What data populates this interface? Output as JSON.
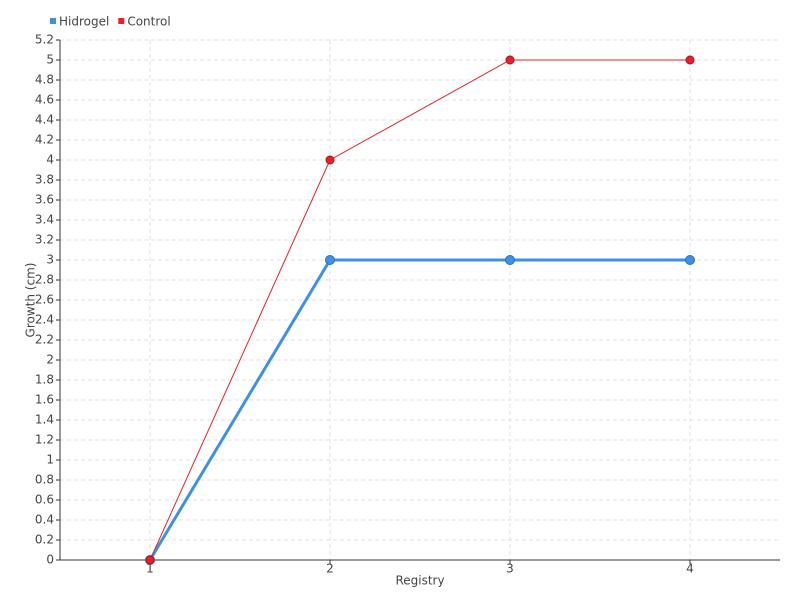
{
  "chart_data": {
    "type": "line",
    "x_label": "Registry",
    "y_label": "Growth (cm)",
    "categories": [
      "1",
      "2",
      "3",
      "4"
    ],
    "series": [
      {
        "name": "Hidrogel",
        "color": "#3d8fe8",
        "values": [
          0,
          3,
          3,
          3
        ]
      },
      {
        "name": "Control",
        "color": "#e8202a",
        "values": [
          0,
          4,
          5,
          5
        ]
      }
    ],
    "ylim": [
      0,
      5.2
    ],
    "yticks": [
      0,
      0.2,
      0.4,
      0.6,
      0.8,
      1,
      1.2,
      1.4,
      1.6,
      1.8,
      2,
      2.2,
      2.4,
      2.6,
      2.8,
      3,
      3.2,
      3.4,
      3.6,
      3.8,
      4,
      4.2,
      4.4,
      4.6,
      4.8,
      5,
      5.2
    ],
    "grid": true,
    "legend": "top-left"
  }
}
